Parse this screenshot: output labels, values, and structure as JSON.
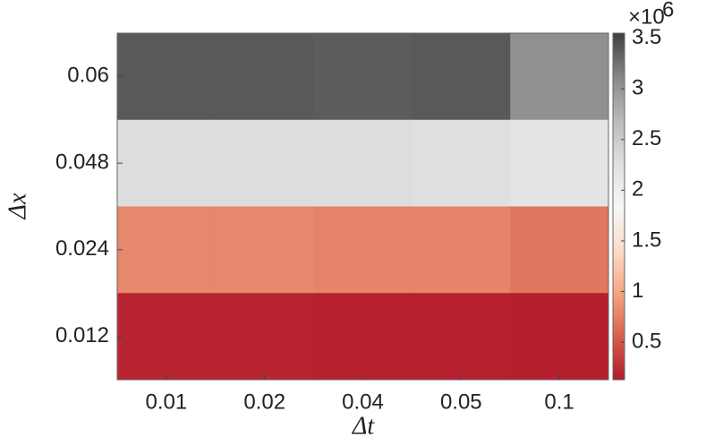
{
  "chart_data": {
    "type": "heatmap",
    "xlabel": "Δt",
    "ylabel": "Δx",
    "x_categories": [
      "0.01",
      "0.02",
      "0.04",
      "0.05",
      "0.1"
    ],
    "y_categories": [
      "0.06",
      "0.048",
      "0.024",
      "0.012"
    ],
    "values": [
      [
        3.4,
        3.4,
        3.38,
        3.4,
        3.05
      ],
      [
        2.3,
        2.3,
        2.3,
        2.28,
        2.2
      ],
      [
        0.8,
        0.8,
        0.78,
        0.78,
        0.7
      ],
      [
        0.2,
        0.2,
        0.18,
        0.18,
        0.17
      ]
    ],
    "colorbar_lim": [
      0.13,
      3.55
    ],
    "colorbar_ticks": [
      0.5,
      1,
      1.5,
      2,
      2.5,
      3,
      3.5
    ],
    "colorbar_multiplier": "×10",
    "colorbar_exponent": "6",
    "colormap": [
      "#b2182b",
      "#d6604d",
      "#f4a582",
      "#fddbc7",
      "#f7f7f7",
      "#e0e0e0",
      "#bababa",
      "#878787",
      "#404040"
    ]
  }
}
